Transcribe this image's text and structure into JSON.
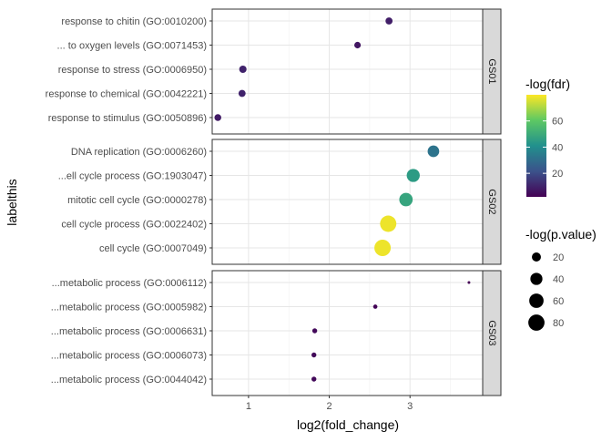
{
  "chart_data": {
    "type": "scatter",
    "facet_by": "gene set",
    "xlabel": "log2(fold_change)",
    "ylabel": "labelthis",
    "x_ticks": [
      1,
      2,
      3
    ],
    "xlim": [
      0.55,
      3.9
    ],
    "panels": [
      {
        "name": "GS01",
        "points": [
          {
            "label": "response to chitin (GO:0010200)",
            "x": 2.74,
            "fdr": 9,
            "pvalue": 11
          },
          {
            "label": "... to oxygen levels (GO:0071453)",
            "x": 2.35,
            "fdr": 7,
            "pvalue": 9
          },
          {
            "label": "response to stress (GO:0006950)",
            "x": 0.93,
            "fdr": 10,
            "pvalue": 12
          },
          {
            "label": "response to chemical (GO:0042221)",
            "x": 0.92,
            "fdr": 10,
            "pvalue": 11
          },
          {
            "label": "response to stimulus (GO:0050896)",
            "x": 0.62,
            "fdr": 8,
            "pvalue": 10
          }
        ]
      },
      {
        "name": "GS02",
        "points": [
          {
            "label": "DNA replication (GO:0006260)",
            "x": 3.29,
            "fdr": 32,
            "pvalue": 36
          },
          {
            "label": "...ell cycle process (GO:1903047)",
            "x": 3.04,
            "fdr": 45,
            "pvalue": 48
          },
          {
            "label": "mitotic cell cycle (GO:0000278)",
            "x": 2.95,
            "fdr": 48,
            "pvalue": 51
          },
          {
            "label": "cell cycle process (GO:0022402)",
            "x": 2.73,
            "fdr": 78,
            "pvalue": 81
          },
          {
            "label": "cell cycle (GO:0007049)",
            "x": 2.66,
            "fdr": 78,
            "pvalue": 82
          }
        ]
      },
      {
        "name": "GS03",
        "points": [
          {
            "label": "...metabolic process (GO:0006112)",
            "x": 3.73,
            "fdr": 2,
            "pvalue": 3
          },
          {
            "label": "...metabolic process (GO:0005982)",
            "x": 2.57,
            "fdr": 3,
            "pvalue": 4
          },
          {
            "label": "...metabolic process (GO:0006631)",
            "x": 1.82,
            "fdr": 4,
            "pvalue": 5
          },
          {
            "label": "...metabolic process (GO:0006073)",
            "x": 1.81,
            "fdr": 4,
            "pvalue": 5
          },
          {
            "label": "...metabolic process (GO:0044042)",
            "x": 1.81,
            "fdr": 4,
            "pvalue": 5
          }
        ]
      }
    ],
    "color_legend": {
      "title": "-log(fdr)",
      "ticks": [
        20,
        40,
        60
      ],
      "range": [
        2,
        80
      ],
      "palette": [
        "#440154",
        "#3b528b",
        "#21908d",
        "#5dc863",
        "#fde725"
      ]
    },
    "size_legend": {
      "title": "-log(p.value)",
      "ticks": [
        20,
        40,
        60,
        80
      ],
      "range": [
        3,
        82
      ]
    }
  }
}
